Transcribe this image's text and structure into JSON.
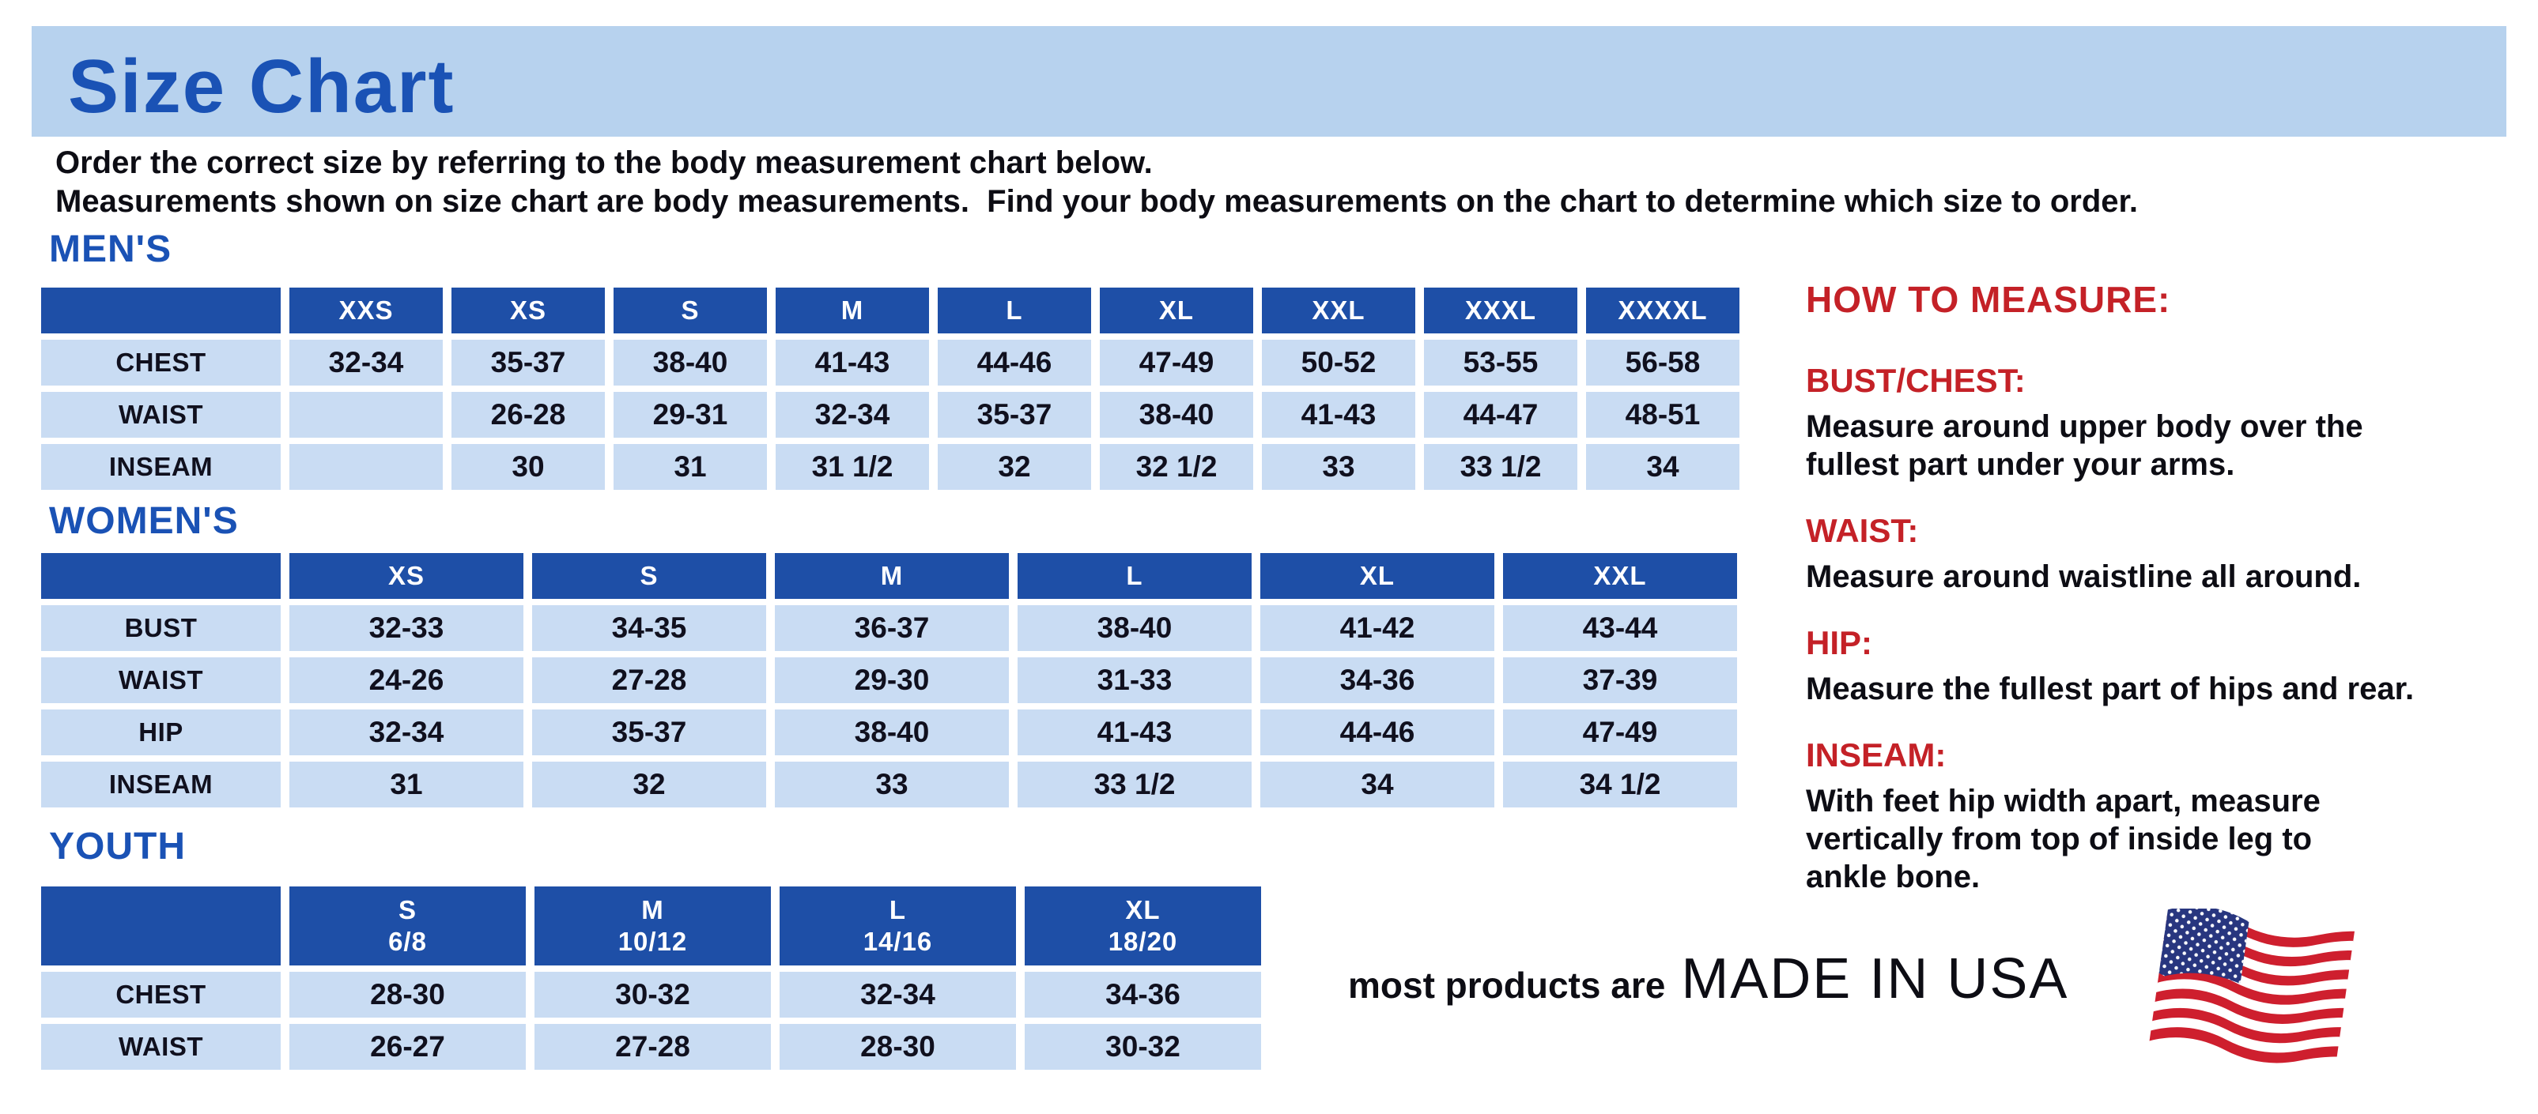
{
  "page": {
    "title": "Size Chart",
    "intro": "Order the correct size by referring to the body measurement chart below.\nMeasurements shown on size chart are body measurements.  Find your body measurements on the chart to determine which size to order."
  },
  "colors": {
    "banner_blue": "#b7d2ee",
    "heading_blue": "#1a52b5",
    "table_header_blue": "#1e4fa7",
    "table_cell_blue": "#c9dcf3",
    "accent_red": "#c42127",
    "text_black": "#0d0d14"
  },
  "tables": [
    {
      "id": "mens",
      "heading": "MEN'S",
      "columns": [
        "",
        "XXS",
        "XS",
        "S",
        "M",
        "L",
        "XL",
        "XXL",
        "XXXL",
        "XXXXL"
      ],
      "rows": [
        [
          "CHEST",
          "32-34",
          "35-37",
          "38-40",
          "41-43",
          "44-46",
          "47-49",
          "50-52",
          "53-55",
          "56-58"
        ],
        [
          "WAIST",
          "",
          "26-28",
          "29-31",
          "32-34",
          "35-37",
          "38-40",
          "41-43",
          "44-47",
          "48-51"
        ],
        [
          "INSEAM",
          "",
          "30",
          "31",
          "31 1/2",
          "32",
          "32 1/2",
          "33",
          "33 1/2",
          "34"
        ]
      ]
    },
    {
      "id": "womens",
      "heading": "WOMEN'S",
      "columns": [
        "",
        "XS",
        "S",
        "M",
        "L",
        "XL",
        "XXL"
      ],
      "rows": [
        [
          "BUST",
          "32-33",
          "34-35",
          "36-37",
          "38-40",
          "41-42",
          "43-44"
        ],
        [
          "WAIST",
          "24-26",
          "27-28",
          "29-30",
          "31-33",
          "34-36",
          "37-39"
        ],
        [
          "HIP",
          "32-34",
          "35-37",
          "38-40",
          "41-43",
          "44-46",
          "47-49"
        ],
        [
          "INSEAM",
          "31",
          "32",
          "33",
          "33 1/2",
          "34",
          "34 1/2"
        ]
      ]
    },
    {
      "id": "youth",
      "heading": "YOUTH",
      "columns": [
        "",
        "S\n6/8",
        "M\n10/12",
        "L\n14/16",
        "XL\n18/20"
      ],
      "rows": [
        [
          "CHEST",
          "28-30",
          "30-32",
          "32-34",
          "34-36"
        ],
        [
          "WAIST",
          "26-27",
          "27-28",
          "28-30",
          "30-32"
        ]
      ]
    }
  ],
  "how_to_measure": {
    "heading": "HOW TO MEASURE:",
    "items": [
      {
        "label": "BUST/CHEST:",
        "text": "Measure around upper body over the\nfullest part under your arms."
      },
      {
        "label": "WAIST:",
        "text": "Measure around waistline all around."
      },
      {
        "label": "HIP:",
        "text": "Measure the fullest part of hips and rear."
      },
      {
        "label": "INSEAM:",
        "text": "With feet hip width apart, measure\nvertically from top of inside leg to\nankle bone."
      }
    ]
  },
  "footer": {
    "prefix": "most products are",
    "made_in": "MADE IN USA",
    "flag_icon": "usa-flag-icon"
  }
}
